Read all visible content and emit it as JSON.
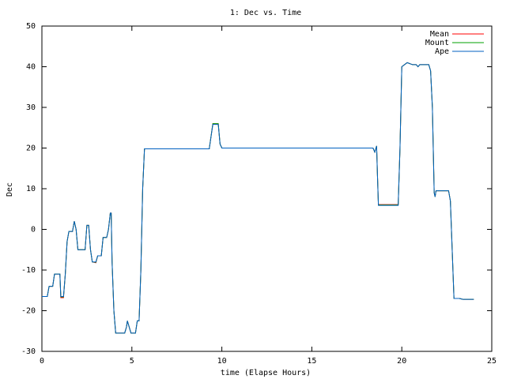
{
  "chart_data": {
    "type": "line",
    "title": "1: Dec vs. Time",
    "x_label": "time (Elapse Hours)",
    "y_label": "Dec",
    "xlim": [
      0,
      25
    ],
    "ylim": [
      -30,
      50
    ],
    "xticks": [
      0,
      5,
      10,
      15,
      20,
      25
    ],
    "yticks": [
      -30,
      -20,
      -10,
      0,
      10,
      20,
      30,
      40,
      50
    ],
    "grid": false,
    "legend": "top-right",
    "x": [
      0,
      0.3,
      0.4,
      0.6,
      0.7,
      1.0,
      1.05,
      1.2,
      1.3,
      1.4,
      1.5,
      1.7,
      1.8,
      1.9,
      2.0,
      2.4,
      2.5,
      2.6,
      2.7,
      2.8,
      3.0,
      3.1,
      3.3,
      3.4,
      3.6,
      3.7,
      3.8,
      3.85,
      3.9,
      4.0,
      4.1,
      4.6,
      4.7,
      4.75,
      4.85,
      4.95,
      5.2,
      5.3,
      5.4,
      5.5,
      5.6,
      5.7,
      9.3,
      9.5,
      9.8,
      9.9,
      10.0,
      18.4,
      18.5,
      18.6,
      18.65,
      18.7,
      19.8,
      19.9,
      20.0,
      20.3,
      20.6,
      20.8,
      20.9,
      21.0,
      21.5,
      21.6,
      21.7,
      21.8,
      21.85,
      21.9,
      22.6,
      22.7,
      22.8,
      22.9,
      23.2,
      23.4,
      24.0
    ],
    "series": [
      {
        "name": "Mean",
        "color": "#ff0000",
        "values": [
          -16.5,
          -16.5,
          -14,
          -14,
          -11,
          -11,
          -16.8,
          -16.8,
          -11,
          -3,
          -0.5,
          -0.5,
          2,
          0,
          -5,
          -5,
          1,
          1,
          -5,
          -8,
          -8.2,
          -6.5,
          -6.5,
          -2,
          -2,
          0,
          4,
          4,
          -8,
          -20,
          -25.5,
          -25.5,
          -24,
          -22.5,
          -24,
          -25.5,
          -25.5,
          -22.5,
          -22.5,
          -10,
          10,
          19.8,
          19.8,
          26,
          26,
          21,
          20,
          20,
          19,
          20.5,
          13,
          6.1,
          6.1,
          20,
          40,
          41,
          40.5,
          40.5,
          40,
          40.5,
          40.5,
          39,
          30,
          9,
          8,
          9.5,
          9.5,
          7,
          -5,
          -17,
          -17,
          -17.2,
          -17.2
        ]
      },
      {
        "name": "Mount",
        "color": "#00a000",
        "values": [
          -16.5,
          -16.5,
          -14,
          -14,
          -11,
          -11,
          -16.6,
          -16.6,
          -11,
          -3,
          -0.5,
          -0.5,
          2,
          0,
          -5,
          -5,
          1,
          1,
          -5,
          -8,
          -8.1,
          -6.5,
          -6.5,
          -2,
          -2,
          0,
          4,
          4,
          -8,
          -20,
          -25.5,
          -25.5,
          -24,
          -22.5,
          -24,
          -25.5,
          -25.5,
          -22.5,
          -22.5,
          -10,
          10,
          19.8,
          19.8,
          26,
          26,
          21,
          20,
          20,
          19,
          20.5,
          13,
          6,
          6,
          20,
          40,
          41,
          40.5,
          40.5,
          40,
          40.5,
          40.5,
          39,
          30,
          9,
          8,
          9.5,
          9.5,
          7,
          -5,
          -17,
          -17,
          -17.2,
          -17.2
        ]
      },
      {
        "name": "Ape",
        "color": "#0060c0",
        "values": [
          -16.5,
          -16.5,
          -14,
          -14,
          -11,
          -11,
          -16.5,
          -16.5,
          -11,
          -3,
          -0.5,
          -0.5,
          2,
          0,
          -5,
          -5,
          1,
          1,
          -5,
          -8,
          -8,
          -6.5,
          -6.5,
          -2,
          -2,
          0,
          4,
          4,
          -8,
          -20,
          -25.5,
          -25.5,
          -24,
          -22.5,
          -24,
          -25.5,
          -25.5,
          -22.5,
          -22.5,
          -10,
          10,
          19.8,
          19.8,
          25.8,
          25.8,
          21,
          20,
          20,
          19,
          20.5,
          13,
          5.9,
          5.9,
          20,
          40,
          41,
          40.5,
          40.5,
          40,
          40.5,
          40.5,
          39,
          30,
          9,
          8,
          9.5,
          9.5,
          7,
          -5,
          -17,
          -17,
          -17.2,
          -17.2
        ]
      }
    ]
  }
}
